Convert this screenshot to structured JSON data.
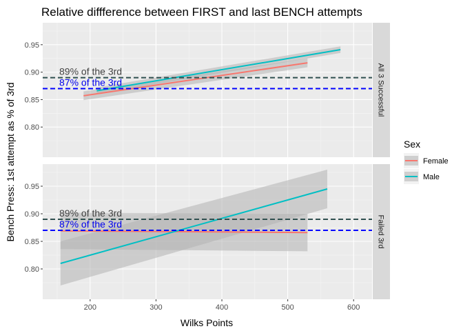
{
  "chart_data": {
    "type": "line",
    "title": "Relative diffference between FIRST and last BENCH attempts",
    "xlabel": "Wilks Points",
    "ylabel": "Bench Press: 1st attempt as % of 3rd",
    "xlim": [
      128,
      628
    ],
    "ylim": [
      0.745,
      0.99
    ],
    "x_ticks": [
      200,
      300,
      400,
      500,
      600
    ],
    "y_ticks": [
      0.8,
      0.85,
      0.9,
      0.95
    ],
    "y_tick_labels": [
      "0.80",
      "0.85",
      "0.90",
      "0.95"
    ],
    "grid": true,
    "legend": {
      "title": "Sex",
      "position": "right"
    },
    "series_colors": {
      "Female": "#F8766D",
      "Male": "#00BFC4"
    },
    "reference_lines": [
      {
        "y": 0.89,
        "color": "#2f4f4f",
        "label": "89% of the 3rd"
      },
      {
        "y": 0.87,
        "color": "#0000ff",
        "label": "87% of the 3rd"
      }
    ],
    "panels": [
      {
        "strip": "All 3 Successful",
        "series": [
          {
            "name": "Female",
            "x": [
              190,
              530
            ],
            "y": [
              0.857,
              0.917
            ],
            "ci_lower": [
              0.849,
              0.909
            ],
            "ci_upper": [
              0.865,
              0.925
            ]
          },
          {
            "name": "Male",
            "x": [
              210,
              580
            ],
            "y": [
              0.866,
              0.941
            ],
            "ci_lower": [
              0.86,
              0.935
            ],
            "ci_upper": [
              0.872,
              0.947
            ]
          }
        ]
      },
      {
        "strip": "Failed 3rd",
        "series": [
          {
            "name": "Female",
            "x": [
              155,
              530
            ],
            "y": [
              0.869,
              0.866
            ],
            "ci_lower": [
              0.836,
              0.832
            ],
            "ci_upper": [
              0.902,
              0.9
            ]
          },
          {
            "name": "Male",
            "x": [
              155,
              560
            ],
            "y": [
              0.81,
              0.945
            ],
            "ci_lower": [
              0.77,
              0.91
            ],
            "ci_upper": [
              0.85,
              0.98
            ]
          }
        ]
      }
    ]
  }
}
